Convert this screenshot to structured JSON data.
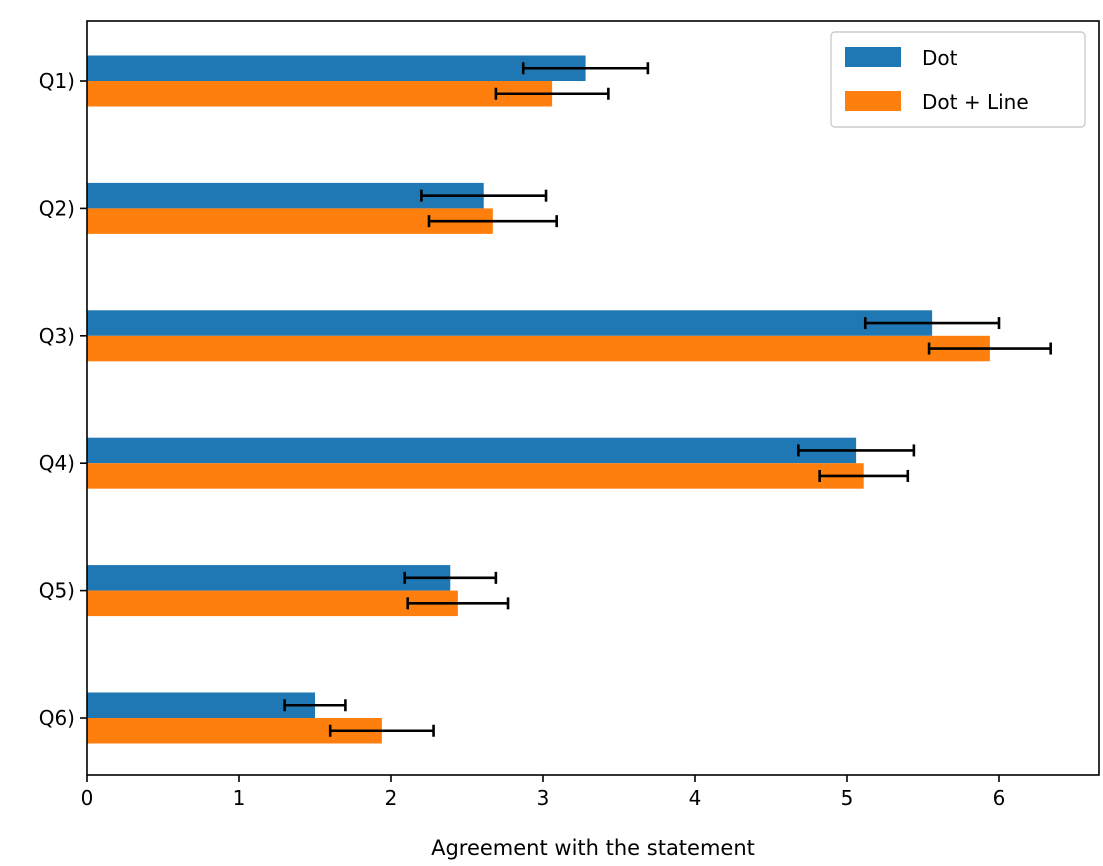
{
  "chart_data": {
    "type": "bar",
    "orientation": "horizontal",
    "categories": [
      "Q1)",
      "Q2)",
      "Q3)",
      "Q4)",
      "Q5)",
      "Q6)"
    ],
    "series": [
      {
        "name": "Dot",
        "color": "#1f77b4",
        "values": [
          3.28,
          2.61,
          5.56,
          5.06,
          2.39,
          1.5
        ],
        "errors": [
          0.41,
          0.41,
          0.44,
          0.38,
          0.3,
          0.2
        ]
      },
      {
        "name": "Dot + Line",
        "color": "#ff7f0e",
        "values": [
          3.06,
          2.67,
          5.94,
          5.11,
          2.44,
          1.94
        ],
        "errors": [
          0.37,
          0.42,
          0.4,
          0.29,
          0.33,
          0.34
        ]
      }
    ],
    "xlabel": "Agreement with the statement",
    "ylabel": "",
    "title": "",
    "xlim": [
      0,
      6.65
    ],
    "xticks": [
      0,
      1,
      2,
      3,
      4,
      5,
      6
    ],
    "grid": false,
    "legend_position": "top-right"
  }
}
